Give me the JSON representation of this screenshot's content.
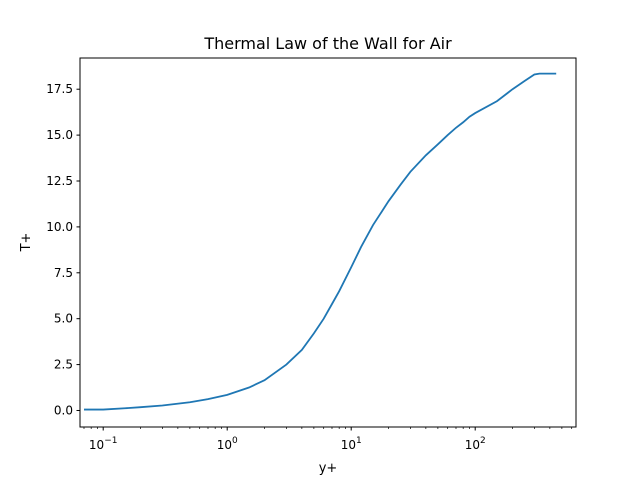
{
  "chart_data": {
    "type": "line",
    "title": "Thermal Law of the Wall for Air",
    "xlabel": "y+",
    "ylabel": "T+",
    "xscale": "log",
    "xlim": [
      0.065,
      650
    ],
    "ylim": [
      -0.9,
      19.2
    ],
    "grid": false,
    "x_ticks": [
      {
        "base": "10",
        "exp": "−1",
        "value": 0.1
      },
      {
        "base": "10",
        "exp": "0",
        "value": 1
      },
      {
        "base": "10",
        "exp": "1",
        "value": 10
      },
      {
        "base": "10",
        "exp": "2",
        "value": 100
      }
    ],
    "y_ticks": [
      {
        "label": "0.0",
        "value": 0
      },
      {
        "label": "2.5",
        "value": 2.5
      },
      {
        "label": "5.0",
        "value": 5
      },
      {
        "label": "7.5",
        "value": 7.5
      },
      {
        "label": "10.0",
        "value": 10
      },
      {
        "label": "12.5",
        "value": 12.5
      },
      {
        "label": "15.0",
        "value": 15
      },
      {
        "label": "17.5",
        "value": 17.5
      }
    ],
    "series": [
      {
        "color": "#1f77b4",
        "x": [
          0.07,
          0.1,
          0.15,
          0.2,
          0.3,
          0.5,
          0.7,
          1,
          1.5,
          2,
          3,
          4,
          5,
          6,
          7,
          8,
          10,
          12,
          15,
          20,
          25,
          30,
          40,
          50,
          60,
          70,
          80,
          90,
          100,
          150,
          200,
          250,
          300,
          330,
          350,
          400,
          450
        ],
        "y": [
          0.05,
          0.05,
          0.12,
          0.18,
          0.27,
          0.45,
          0.62,
          0.85,
          1.25,
          1.65,
          2.5,
          3.3,
          4.2,
          5.0,
          5.8,
          6.5,
          7.8,
          8.9,
          10.1,
          11.4,
          12.3,
          13.0,
          13.9,
          14.5,
          15.0,
          15.4,
          15.7,
          16.0,
          16.2,
          16.85,
          17.5,
          17.95,
          18.3,
          18.35,
          18.35,
          18.35,
          18.35
        ]
      }
    ]
  }
}
